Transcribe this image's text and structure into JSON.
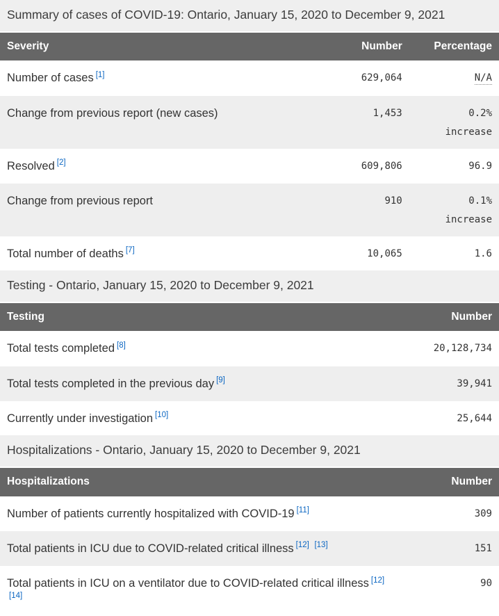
{
  "colors": {
    "table_header_bg": "#666666",
    "zebra_stripe_bg": "#eeeeee",
    "caption_bg": "#efefef",
    "body_text": "#333333",
    "footnote_link": "#0b66c2"
  },
  "sections": [
    {
      "caption": "Summary of cases of COVID-19: Ontario, January 15, 2020 to December 9, 2021",
      "columns": [
        "Severity",
        "Number",
        "Percentage"
      ],
      "rows": [
        {
          "label": "Number of cases",
          "refs": [
            "1"
          ],
          "number": "629,064",
          "percentage": "N/A",
          "na": true
        },
        {
          "label": "Change from previous report (new cases)",
          "refs": [],
          "number": "1,453",
          "percentage": "0.2%",
          "note": "increase"
        },
        {
          "label": "Resolved",
          "refs": [
            "2"
          ],
          "number": "609,806",
          "percentage": "96.9"
        },
        {
          "label": "Change from previous report",
          "refs": [],
          "number": "910",
          "percentage": "0.1%",
          "note": "increase"
        },
        {
          "label": "Total number of deaths",
          "refs": [
            "7"
          ],
          "number": "10,065",
          "percentage": "1.6"
        }
      ]
    },
    {
      "caption": "Testing - Ontario, January 15, 2020 to December 9, 2021",
      "columns": [
        "Testing",
        "Number"
      ],
      "rows": [
        {
          "label": "Total tests completed",
          "refs": [
            "8"
          ],
          "number": "20,128,734"
        },
        {
          "label": "Total tests completed in the previous day",
          "refs": [
            "9"
          ],
          "number": "39,941"
        },
        {
          "label": "Currently under investigation",
          "refs": [
            "10"
          ],
          "number": "25,644"
        }
      ]
    },
    {
      "caption": "Hospitalizations - Ontario, January 15, 2020 to December 9, 2021",
      "columns": [
        "Hospitalizations",
        "Number"
      ],
      "rows": [
        {
          "label": "Number of patients currently hospitalized with COVID-19",
          "refs": [
            "11"
          ],
          "number": "309"
        },
        {
          "label": "Total patients in ICU due to COVID-related critical illness",
          "refs": [
            "12",
            "13"
          ],
          "number": "151"
        },
        {
          "label": "Total patients in ICU on a ventilator due to COVID-related critical illness",
          "refs": [
            "12",
            "14"
          ],
          "number": "90"
        }
      ]
    }
  ]
}
